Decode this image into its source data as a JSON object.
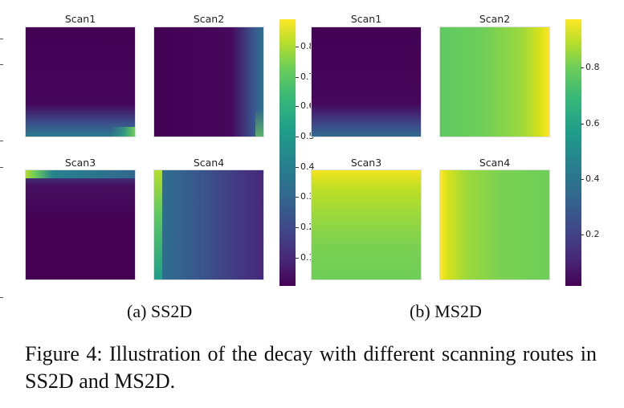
{
  "panels": [
    {
      "id": "ss2d",
      "label": "(a) SS2D",
      "maps": [
        {
          "title": "Scan1"
        },
        {
          "title": "Scan2"
        },
        {
          "title": "Scan3"
        },
        {
          "title": "Scan4"
        }
      ],
      "colorbar": {
        "ticks": [
          "0.8",
          "0.7",
          "0.6",
          "0.5",
          "0.4",
          "0.3",
          "0.2",
          "0.1"
        ]
      }
    },
    {
      "id": "ms2d",
      "label": "(b) MS2D",
      "maps": [
        {
          "title": "Scan1"
        },
        {
          "title": "Scan2"
        },
        {
          "title": "Scan3"
        },
        {
          "title": "Scan4"
        }
      ],
      "colorbar": {
        "ticks": [
          "0.8",
          "0.6",
          "0.4",
          "0.2"
        ]
      }
    }
  ],
  "caption": "Figure 4: Illustration of the decay with different scanning routes in SS2D and MS2D.",
  "colors": {
    "viridis_low": "#440154",
    "viridis_mid": "#21918c",
    "viridis_high": "#fde725"
  }
}
